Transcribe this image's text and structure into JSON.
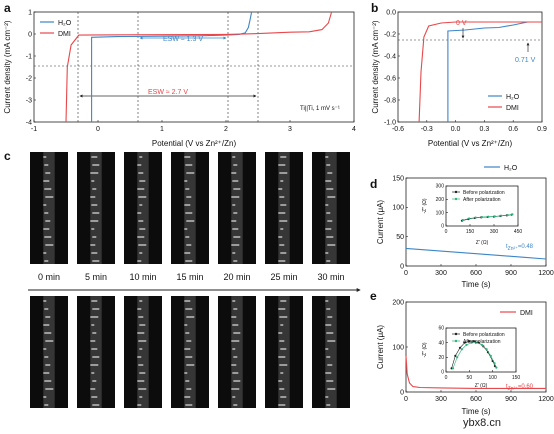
{
  "panels": {
    "a": "a",
    "b": "b",
    "c": "c",
    "d": "d",
    "e": "e"
  },
  "colors": {
    "h2o": "#3d86c7",
    "dmi": "#e8474b",
    "green": "#2db47c",
    "black": "#222222"
  },
  "chart_data": [
    {
      "id": "a",
      "type": "line",
      "xlabel": "Potential (V vs Zn²⁺/Zn)",
      "ylabel": "Current density (mA cm⁻²)",
      "xlim": [
        -1,
        4
      ],
      "ylim": [
        -4,
        1
      ],
      "xticks": [
        "-1",
        "0",
        "1",
        "2",
        "3",
        "4"
      ],
      "yticks": [
        "1",
        "0",
        "-1",
        "-2",
        "-3",
        "-4"
      ],
      "legend": [
        "H₂O",
        "DMI"
      ],
      "annotations": {
        "esw_h2o": "ESW ≈ 1.3 V",
        "esw_dmi": "ESW ≈ 2.7 V",
        "cond": "Ti||Ti, 1 mV s⁻¹"
      },
      "series": [
        {
          "name": "H₂O",
          "points": [
            [
              -0.1,
              -4
            ],
            [
              -0.1,
              -0.15
            ],
            [
              0.3,
              -0.12
            ],
            [
              1.0,
              -0.1
            ],
            [
              1.6,
              -0.08
            ],
            [
              2.0,
              -0.05
            ],
            [
              2.2,
              -0.02
            ],
            [
              2.3,
              0.05
            ],
            [
              2.35,
              0.3
            ],
            [
              2.38,
              0.7
            ],
            [
              2.4,
              1.0
            ]
          ]
        },
        {
          "name": "DMI",
          "points": [
            [
              -0.5,
              -4
            ],
            [
              -0.48,
              -1.5
            ],
            [
              -0.42,
              -0.5
            ],
            [
              -0.3,
              -0.05
            ],
            [
              0,
              -0.04
            ],
            [
              1,
              -0.03
            ],
            [
              2,
              -0.02
            ],
            [
              2.5,
              0.02
            ],
            [
              3.0,
              0.08
            ],
            [
              3.3,
              0.1
            ],
            [
              3.5,
              0.2
            ],
            [
              3.6,
              0.5
            ],
            [
              3.65,
              1.0
            ]
          ]
        }
      ]
    },
    {
      "id": "b",
      "type": "line",
      "xlabel": "Potential (V vs Zn²⁺/Zn)",
      "ylabel": "Current density (mA cm⁻²)",
      "xlim": [
        -0.6,
        0.9
      ],
      "ylim": [
        -1.0,
        0.1
      ],
      "xticks": [
        "-0.6",
        "-0.3",
        "0.0",
        "0.3",
        "0.6",
        "0.9"
      ],
      "yticks": [
        "0.0",
        "-0.2",
        "-0.4",
        "-0.6",
        "-0.8",
        "-1.0"
      ],
      "legend": [
        "H₂O",
        "DMI"
      ],
      "annotations": {
        "dmi_label": "0 V",
        "h2o_label": "0.71 V"
      },
      "series": [
        {
          "name": "H₂O",
          "points": [
            [
              -0.08,
              -1.0
            ],
            [
              -0.08,
              -0.09
            ],
            [
              0.1,
              -0.08
            ],
            [
              0.2,
              -0.07
            ],
            [
              0.3,
              -0.06
            ],
            [
              0.45,
              -0.055
            ],
            [
              0.6,
              -0.03
            ],
            [
              0.7,
              -0.01
            ],
            [
              0.75,
              0.0
            ]
          ]
        },
        {
          "name": "DMI",
          "points": [
            [
              -0.38,
              -1.0
            ],
            [
              -0.36,
              -0.5
            ],
            [
              -0.33,
              -0.15
            ],
            [
              -0.28,
              -0.04
            ],
            [
              -0.15,
              -0.01
            ],
            [
              0.0,
              0.0
            ],
            [
              0.3,
              0.0
            ],
            [
              0.9,
              0.0
            ]
          ]
        }
      ]
    },
    {
      "id": "d",
      "type": "line",
      "xlabel": "Time (s)",
      "ylabel": "Current (μA)",
      "xlim": [
        0,
        1200
      ],
      "ylim": [
        0,
        150
      ],
      "xticks": [
        "0",
        "300",
        "600",
        "900",
        "1200"
      ],
      "yticks": [
        "0",
        "50",
        "100",
        "150"
      ],
      "legend": [
        "H₂O"
      ],
      "annotations": {
        "t": "t",
        "t_sub": "Zn²⁺",
        "t_val": "=0.48"
      },
      "series": [
        {
          "name": "H₂O",
          "points": [
            [
              0,
              30
            ],
            [
              200,
              27
            ],
            [
              400,
              24
            ],
            [
              600,
              21
            ],
            [
              800,
              18
            ],
            [
              1000,
              15
            ],
            [
              1200,
              12
            ]
          ]
        }
      ],
      "inset": {
        "xlabel": "Z' (Ω)",
        "ylabel": "-Z'' (Ω)",
        "xlim": [
          0,
          450
        ],
        "ylim": [
          0,
          300
        ],
        "xticks": [
          "0",
          "150",
          "300",
          "450"
        ],
        "yticks": [
          "0",
          "100",
          "200",
          "300"
        ],
        "legend": [
          "Before polarization",
          "After polarization"
        ],
        "series": [
          {
            "name": "Before polarization",
            "points": [
              [
                100,
                40
              ],
              [
                140,
                52
              ],
              [
                180,
                60
              ],
              [
                220,
                65
              ],
              [
                260,
                68
              ],
              [
                300,
                70
              ],
              [
                340,
                75
              ],
              [
                380,
                80
              ],
              [
                410,
                85
              ]
            ]
          },
          {
            "name": "After polarization",
            "points": [
              [
                105,
                45
              ],
              [
                145,
                56
              ],
              [
                185,
                63
              ],
              [
                225,
                67
              ],
              [
                265,
                70
              ],
              [
                305,
                72
              ],
              [
                345,
                77
              ],
              [
                385,
                82
              ],
              [
                415,
                87
              ]
            ]
          }
        ]
      }
    },
    {
      "id": "e",
      "type": "line",
      "xlabel": "Time (s)",
      "ylabel": "Current (μA)",
      "xlim": [
        0,
        1200
      ],
      "ylim": [
        0,
        200
      ],
      "xticks": [
        "0",
        "300",
        "600",
        "900",
        "1200"
      ],
      "yticks": [
        "0",
        "100",
        "200"
      ],
      "legend": [
        "DMI"
      ],
      "annotations": {
        "t": "t",
        "t_sub": "Zn²⁺",
        "t_val": "=0.60"
      },
      "series": [
        {
          "name": "DMI",
          "points": [
            [
              0,
              80
            ],
            [
              10,
              40
            ],
            [
              30,
              20
            ],
            [
              60,
              12
            ],
            [
              120,
              10
            ],
            [
              300,
              9
            ],
            [
              600,
              8
            ],
            [
              900,
              8
            ],
            [
              1200,
              8
            ]
          ]
        }
      ],
      "inset": {
        "xlabel": "Z' (Ω)",
        "ylabel": "-Z'' (Ω)",
        "xlim": [
          0,
          150
        ],
        "ylim": [
          0,
          60
        ],
        "xticks": [
          "0",
          "50",
          "100",
          "150"
        ],
        "yticks": [
          "0",
          "20",
          "40",
          "60"
        ],
        "legend": [
          "Before polarization",
          "After polarization"
        ],
        "series": [
          {
            "name": "Before polarization",
            "points": [
              [
                12,
                5
              ],
              [
                20,
                22
              ],
              [
                30,
                33
              ],
              [
                40,
                40
              ],
              [
                50,
                42
              ],
              [
                60,
                42
              ],
              [
                70,
                40
              ],
              [
                80,
                35
              ],
              [
                90,
                27
              ],
              [
                100,
                15
              ],
              [
                105,
                8
              ]
            ]
          },
          {
            "name": "After polarization",
            "points": [
              [
                15,
                5
              ],
              [
                24,
                20
              ],
              [
                34,
                31
              ],
              [
                44,
                37
              ],
              [
                55,
                40
              ],
              [
                66,
                40
              ],
              [
                77,
                37
              ],
              [
                87,
                31
              ],
              [
                96,
                22
              ],
              [
                104,
                12
              ],
              [
                108,
                6
              ]
            ]
          }
        ]
      }
    }
  ],
  "panel_c": {
    "times": [
      "0 min",
      "5 min",
      "10 min",
      "15 min",
      "20 min",
      "25 min",
      "30 min"
    ]
  },
  "watermark": "ybx8.cn"
}
